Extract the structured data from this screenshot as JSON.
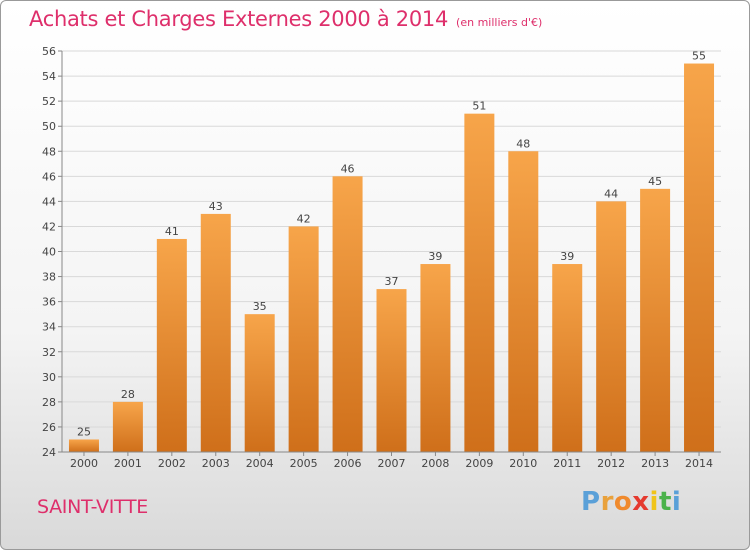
{
  "title": "Achats et Charges Externes 2000 à 2014",
  "unit": "(en milliers d'€)",
  "commune": "SAINT-VITTE",
  "logo": {
    "letters": [
      "P",
      "r",
      "o",
      "x",
      "i",
      "t",
      "i"
    ],
    "colors": [
      "#5aa0d8",
      "#e9a13b",
      "#f08a2d",
      "#e53a2f",
      "#f0c419",
      "#4bb24b",
      "#5aa0d8"
    ]
  },
  "colors": {
    "title": "#de2f6b",
    "bar_light": "#f7a54a",
    "bar_dark": "#cf6f1a",
    "grid": "#d9d9d9"
  },
  "chart_data": {
    "type": "bar",
    "title": "Achats et Charges Externes 2000 à 2014",
    "subtitle": "(en milliers d'€)",
    "categories": [
      "2000",
      "2001",
      "2002",
      "2003",
      "2004",
      "2005",
      "2006",
      "2007",
      "2008",
      "2009",
      "2010",
      "2011",
      "2012",
      "2013",
      "2014"
    ],
    "values": [
      25,
      28,
      41,
      43,
      35,
      42,
      46,
      37,
      39,
      51,
      48,
      39,
      44,
      45,
      55
    ],
    "ylim": [
      24,
      56
    ],
    "yticks": [
      24,
      26,
      28,
      30,
      32,
      34,
      36,
      38,
      40,
      42,
      44,
      46,
      48,
      50,
      52,
      54,
      56
    ],
    "grid": true,
    "xlabel": "",
    "ylabel": ""
  }
}
